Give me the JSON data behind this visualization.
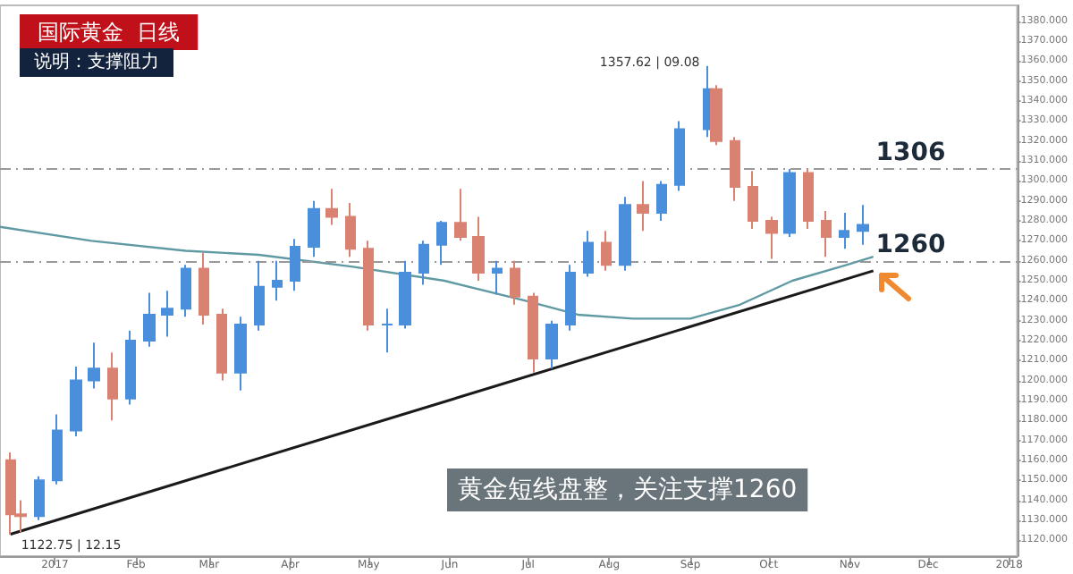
{
  "chart_data": {
    "type": "candlestick",
    "title": "国际黄金  日线",
    "subtitle": "说明：支撑阻力",
    "x": [
      "2016-12-15",
      "2016-12-19",
      "2016-12-26",
      "2017-01-02",
      "2017-01-09",
      "2017-01-16",
      "2017-01-23",
      "2017-01-30",
      "2017-02-06",
      "2017-02-13",
      "2017-02-20",
      "2017-02-27",
      "2017-03-06",
      "2017-03-13",
      "2017-03-20",
      "2017-03-27",
      "2017-04-03",
      "2017-04-10",
      "2017-04-17",
      "2017-04-24",
      "2017-05-01",
      "2017-05-08",
      "2017-05-15",
      "2017-05-22",
      "2017-05-29",
      "2017-06-05",
      "2017-06-12",
      "2017-06-19",
      "2017-06-26",
      "2017-07-03",
      "2017-07-10",
      "2017-07-17",
      "2017-07-24",
      "2017-07-31",
      "2017-08-07",
      "2017-08-14",
      "2017-08-21",
      "2017-08-28",
      "2017-09-08",
      "2017-09-11",
      "2017-09-18",
      "2017-09-25",
      "2017-10-02",
      "2017-10-09",
      "2017-10-16",
      "2017-10-23",
      "2017-10-30",
      "2017-11-06"
    ],
    "ohlc": [
      [
        1160,
        1164,
        1122.75,
        1133
      ],
      [
        1133,
        1140,
        1124,
        1132
      ],
      [
        1132,
        1152,
        1130,
        1150
      ],
      [
        1150,
        1183,
        1148,
        1175
      ],
      [
        1175,
        1207,
        1172,
        1200
      ],
      [
        1200,
        1219,
        1196,
        1206
      ],
      [
        1206,
        1214,
        1180,
        1191
      ],
      [
        1191,
        1225,
        1188,
        1220
      ],
      [
        1220,
        1244,
        1217,
        1233
      ],
      [
        1233,
        1245,
        1222,
        1236
      ],
      [
        1236,
        1258,
        1232,
        1256
      ],
      [
        1256,
        1264,
        1228,
        1233
      ],
      [
        1233,
        1236,
        1200,
        1204
      ],
      [
        1204,
        1232,
        1195,
        1228
      ],
      [
        1228,
        1260,
        1225,
        1247
      ],
      [
        1247,
        1260,
        1240,
        1250
      ],
      [
        1250,
        1271,
        1245,
        1267
      ],
      [
        1267,
        1290,
        1262,
        1286
      ],
      [
        1286,
        1296,
        1278,
        1282
      ],
      [
        1282,
        1289,
        1262,
        1266
      ],
      [
        1266,
        1270,
        1225,
        1228
      ],
      [
        1228,
        1236,
        1214,
        1228
      ],
      [
        1228,
        1260,
        1226,
        1254
      ],
      [
        1254,
        1270,
        1248,
        1268
      ],
      [
        1268,
        1280,
        1258,
        1279
      ],
      [
        1279,
        1296,
        1270,
        1272
      ],
      [
        1272,
        1282,
        1250,
        1254
      ],
      [
        1254,
        1260,
        1243,
        1256
      ],
      [
        1256,
        1260,
        1238,
        1242
      ],
      [
        1242,
        1244,
        1204,
        1211
      ],
      [
        1211,
        1230,
        1206,
        1228
      ],
      [
        1228,
        1258,
        1225,
        1254
      ],
      [
        1254,
        1275,
        1252,
        1269
      ],
      [
        1269,
        1275,
        1255,
        1258
      ],
      [
        1258,
        1292,
        1255,
        1288
      ],
      [
        1288,
        1300,
        1275,
        1284
      ],
      [
        1284,
        1300,
        1280,
        1298
      ],
      [
        1298,
        1330,
        1295,
        1326
      ],
      [
        1326,
        1357.62,
        1322,
        1346
      ],
      [
        1346,
        1348,
        1318,
        1320
      ],
      [
        1320,
        1322,
        1290,
        1297
      ],
      [
        1297,
        1305,
        1276,
        1280
      ],
      [
        1280,
        1282,
        1261,
        1274
      ],
      [
        1274,
        1306,
        1272,
        1304
      ],
      [
        1304,
        1306,
        1276,
        1280
      ],
      [
        1280,
        1285,
        1262,
        1272
      ],
      [
        1272,
        1284,
        1266,
        1275
      ],
      [
        1275,
        1288,
        1268,
        1278
      ]
    ],
    "colors": [
      "#d98272",
      "#d98272",
      "#4a8fdc",
      "#4a8fdc",
      "#4a8fdc",
      "#4a8fdc",
      "#d98272",
      "#4a8fdc",
      "#4a8fdc",
      "#4a8fdc",
      "#4a8fdc",
      "#d98272",
      "#d98272",
      "#4a8fdc",
      "#4a8fdc",
      "#4a8fdc",
      "#4a8fdc",
      "#4a8fdc",
      "#d98272",
      "#d98272",
      "#d98272",
      "#4a8fdc",
      "#4a8fdc",
      "#4a8fdc",
      "#4a8fdc",
      "#d98272",
      "#d98272",
      "#4a8fdc",
      "#d98272",
      "#d98272",
      "#4a8fdc",
      "#4a8fdc",
      "#4a8fdc",
      "#d98272",
      "#4a8fdc",
      "#d98272",
      "#4a8fdc",
      "#4a8fdc",
      "#4a8fdc",
      "#d98272",
      "#d98272",
      "#d98272",
      "#d98272",
      "#4a8fdc",
      "#d98272",
      "#d98272",
      "#4a8fdc",
      "#4a8fdc"
    ],
    "series": [
      {
        "type": "line",
        "color": "#5f9aa3",
        "x": [
          "2016-12-11",
          "2017-01-15",
          "2017-02-20",
          "2017-03-20",
          "2017-04-25",
          "2017-05-30",
          "2017-06-30",
          "2017-07-20",
          "2017-08-10",
          "2017-09-01",
          "2017-09-20",
          "2017-10-10",
          "2017-10-31",
          "2017-11-10"
        ],
        "values": [
          1277,
          1270,
          1265,
          1263,
          1257,
          1250,
          1240,
          1233,
          1231,
          1231,
          1238,
          1250,
          1258,
          1262
        ]
      },
      {
        "type": "line",
        "color": "#1a1a1a",
        "x": [
          "2016-12-15",
          "2017-11-10"
        ],
        "values": [
          1123,
          1255
        ]
      }
    ],
    "xlim": [
      "2016-12-11",
      "2018-01-04"
    ],
    "xticks": [
      {
        "value": "2017-01-01",
        "label": "2017"
      },
      {
        "value": "2017-02-01",
        "label": "Feb"
      },
      {
        "value": "2017-03-01",
        "label": "Mar"
      },
      {
        "value": "2017-04-01",
        "label": "Apr"
      },
      {
        "value": "2017-05-01",
        "label": "May"
      },
      {
        "value": "2017-06-01",
        "label": "Jun"
      },
      {
        "value": "2017-07-01",
        "label": "Jul"
      },
      {
        "value": "2017-08-01",
        "label": "Aug"
      },
      {
        "value": "2017-09-01",
        "label": "Sep"
      },
      {
        "value": "2017-10-01",
        "label": "Oct"
      },
      {
        "value": "2017-11-01",
        "label": "Nov"
      },
      {
        "value": "2017-12-01",
        "label": "Dec"
      },
      {
        "value": "2018-01-01",
        "label": "2018"
      }
    ],
    "ylim": [
      1112,
      1388
    ],
    "yticks": [
      {
        "value": 1120,
        "label": "1120.000"
      },
      {
        "value": 1130,
        "label": "1130.000"
      },
      {
        "value": 1140,
        "label": "1140.000"
      },
      {
        "value": 1150,
        "label": "1150.000"
      },
      {
        "value": 1160,
        "label": "1160.000"
      },
      {
        "value": 1170,
        "label": "1170.000"
      },
      {
        "value": 1180,
        "label": "1180.000"
      },
      {
        "value": 1190,
        "label": "1190.000"
      },
      {
        "value": 1200,
        "label": "1200.000"
      },
      {
        "value": 1210,
        "label": "1210.000"
      },
      {
        "value": 1220,
        "label": "1220.000"
      },
      {
        "value": 1230,
        "label": "1230.000"
      },
      {
        "value": 1240,
        "label": "1240.000"
      },
      {
        "value": 1250,
        "label": "1250.000"
      },
      {
        "value": 1260,
        "label": "1260.000"
      },
      {
        "value": 1270,
        "label": "1270.000"
      },
      {
        "value": 1280,
        "label": "1280.000"
      },
      {
        "value": 1290,
        "label": "1290.000"
      },
      {
        "value": 1300,
        "label": "1300.000"
      },
      {
        "value": 1310,
        "label": "1310.000"
      },
      {
        "value": 1320,
        "label": "1320.000"
      },
      {
        "value": 1330,
        "label": "1330.000"
      },
      {
        "value": 1340,
        "label": "1340.000"
      },
      {
        "value": 1350,
        "label": "1350.000"
      },
      {
        "value": 1360,
        "label": "1360.000"
      },
      {
        "value": 1370,
        "label": "1370.000"
      },
      {
        "value": 1380,
        "label": "1380.000"
      }
    ],
    "ref_lines": [
      {
        "axis": "y",
        "value": 1306,
        "label": "1306",
        "color": "#999999",
        "line_style": "dashed"
      },
      {
        "axis": "y",
        "value": 1260,
        "label": "1260",
        "color": "#999999",
        "line_style": "dashed"
      }
    ],
    "annotations": [
      {
        "text": "1357.62 | 09.08",
        "x": "2017-09-08",
        "y": 1357.62
      },
      {
        "text": "1122.75 | 12.15",
        "x": "2016-12-15",
        "y": 1122.75
      },
      "黄金短线盘整，关注支撑1260"
    ],
    "grid": false
  }
}
